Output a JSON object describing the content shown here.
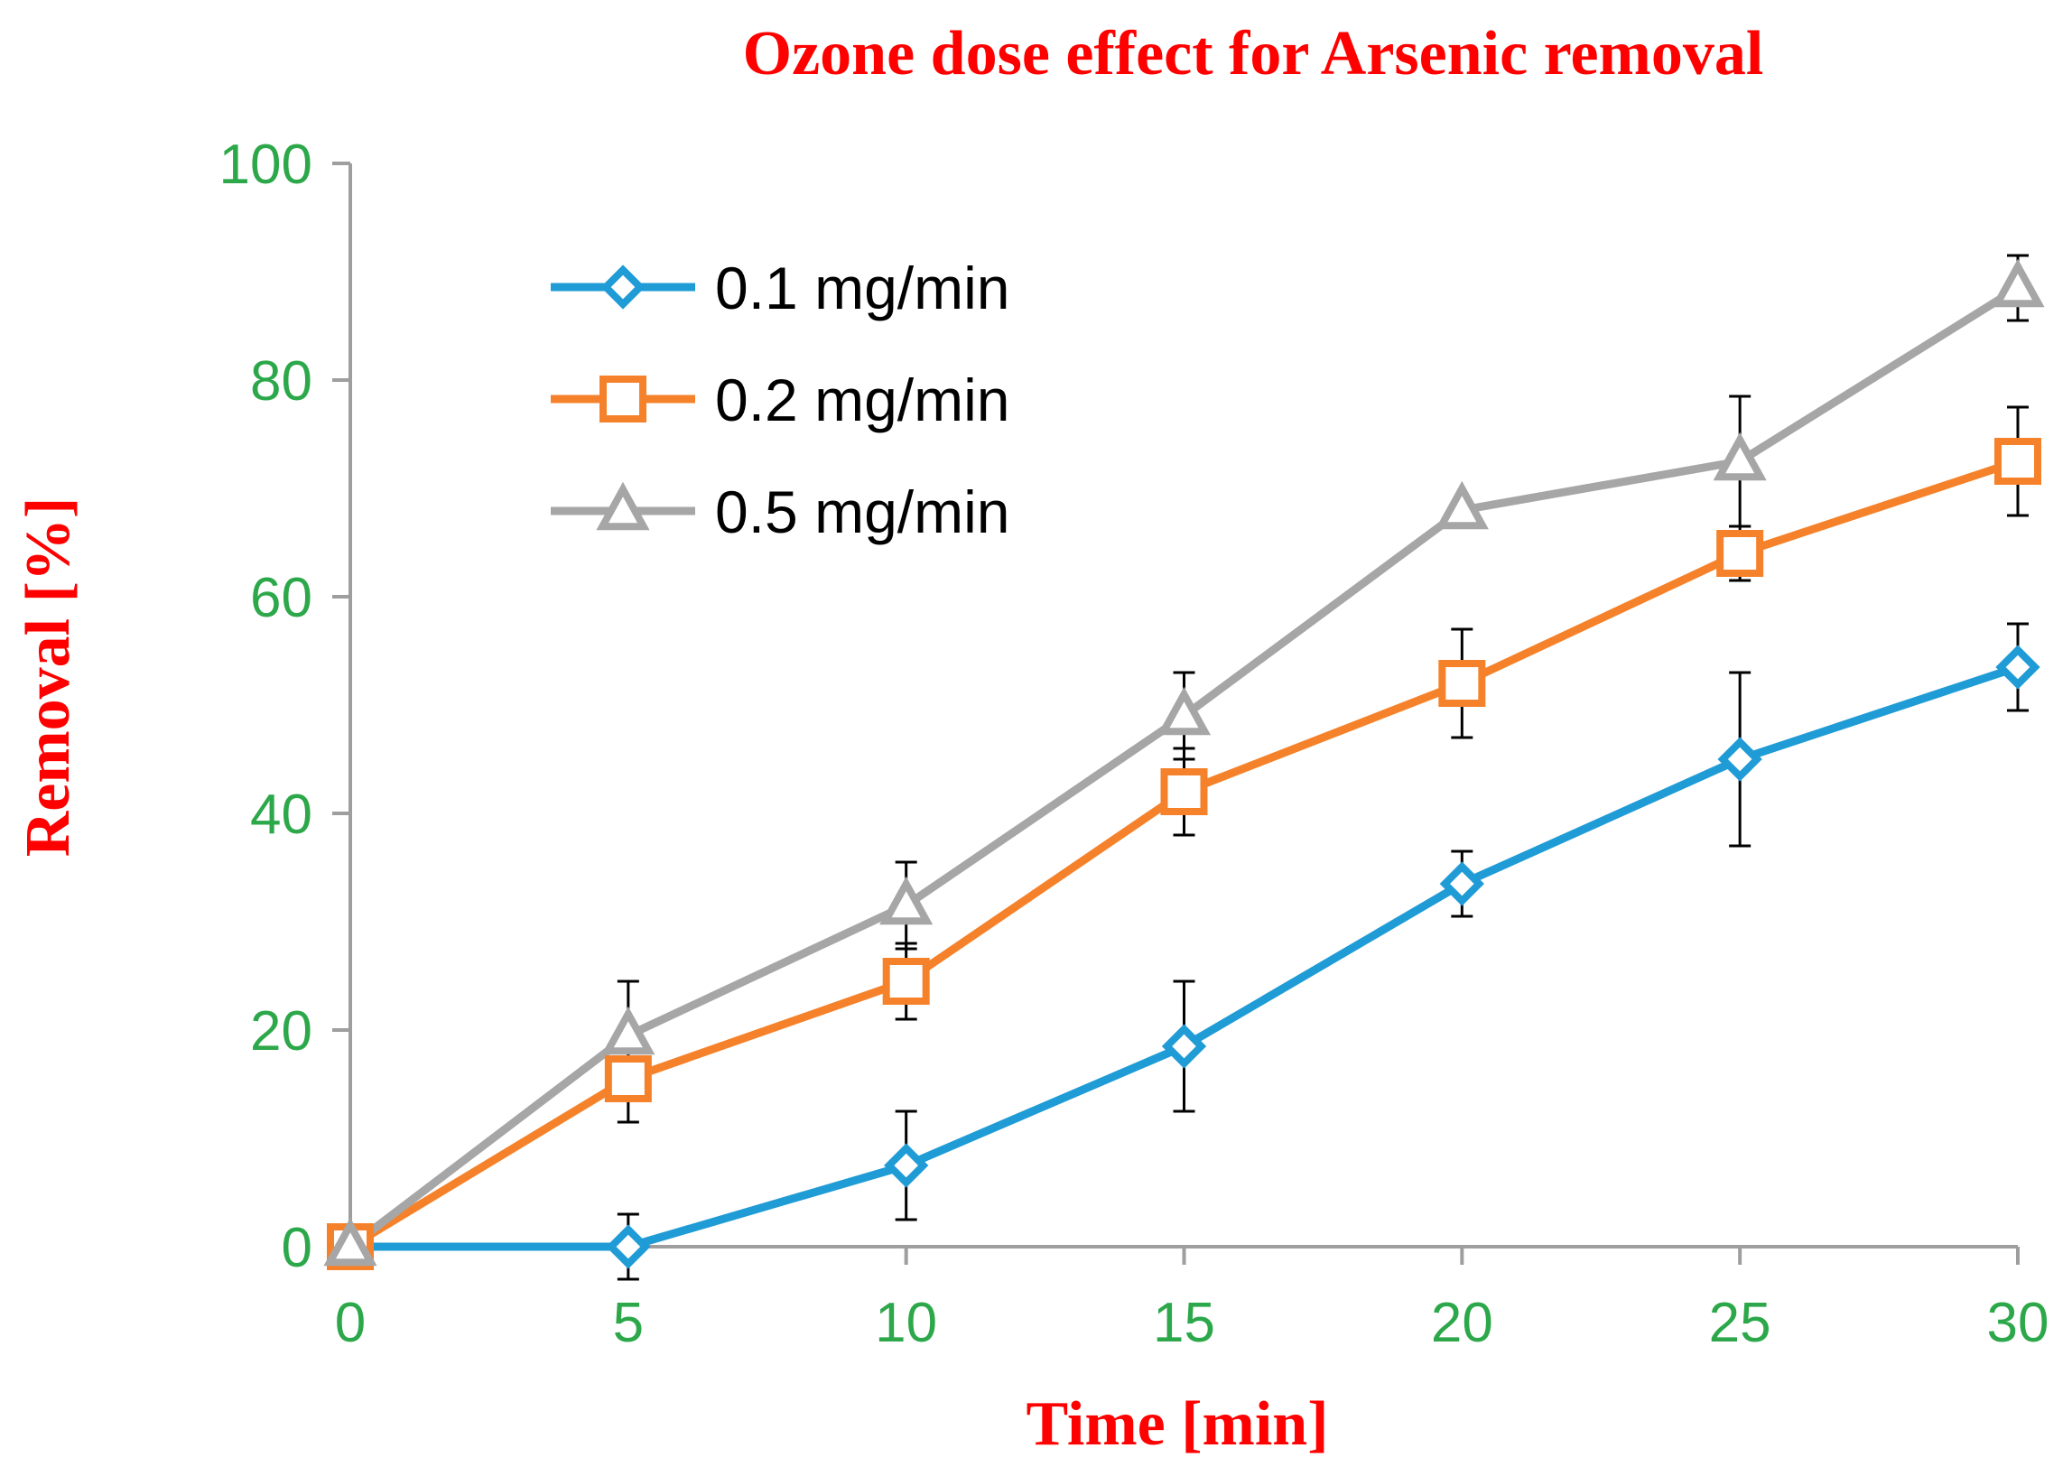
{
  "chart_data": {
    "type": "line",
    "title": "Ozone dose effect for Arsenic removal",
    "xlabel": "Time [min]",
    "ylabel": "Removal [%]",
    "x": [
      0,
      5,
      10,
      15,
      20,
      25,
      30
    ],
    "xlim": [
      0,
      30
    ],
    "ylim": [
      0,
      100
    ],
    "x_ticks": [
      "0",
      "5",
      "10",
      "15",
      "20",
      "25",
      "30"
    ],
    "y_ticks": [
      "0",
      "20",
      "40",
      "60",
      "80",
      "100"
    ],
    "grid": false,
    "legend_position": "top-left",
    "series": [
      {
        "name": "0.1 mg/min",
        "marker": "diamond",
        "color": "#1f9bd6",
        "values": [
          0,
          0,
          7.5,
          18.5,
          33.5,
          45,
          53.5
        ],
        "error": [
          0,
          3,
          5,
          6,
          3,
          8,
          4
        ]
      },
      {
        "name": "0.2 mg/min",
        "marker": "square",
        "color": "#f5822a",
        "values": [
          0,
          15.5,
          24.5,
          42,
          52,
          64,
          72.5
        ],
        "error": [
          0,
          4,
          3.5,
          4,
          5,
          2.5,
          5
        ]
      },
      {
        "name": "0.5 mg/min",
        "marker": "triangle",
        "color": "#a6a6a6",
        "values": [
          0,
          19.5,
          31.5,
          49,
          68,
          72.5,
          88.5
        ],
        "error": [
          0,
          5,
          4,
          4,
          0,
          6,
          3
        ]
      }
    ],
    "colors": {
      "title": "#ff0000",
      "axis_labels": "#ff0000",
      "tick_labels": "#2ca84a",
      "axis_line": "#9e9e9e",
      "error_bars": "#000000"
    }
  }
}
